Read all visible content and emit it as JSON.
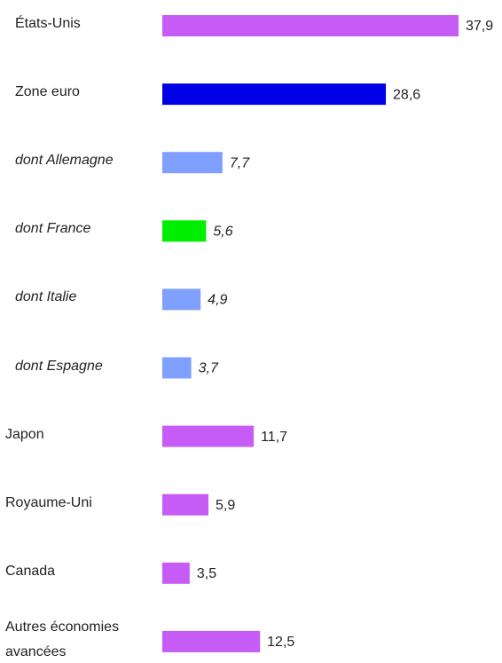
{
  "chart_data": {
    "type": "bar",
    "categories": [
      "États-Unis",
      "Zone euro",
      "dont Allemagne",
      "dont France",
      "dont Italie",
      "dont Espagne",
      "Japon",
      "Royaume-Uni",
      "Canada",
      "Autres économies avancées"
    ],
    "values": [
      37.9,
      28.6,
      7.7,
      5.6,
      4.9,
      3.7,
      11.7,
      5.9,
      3.5,
      12.5
    ],
    "value_labels": [
      "37,9",
      "28,6",
      "7,7",
      "5,6",
      "4,9",
      "3,7",
      "11,7",
      "5,9",
      "3,5",
      "12,5"
    ],
    "colors": [
      "#c65cf5",
      "#0000e6",
      "#80a0ff",
      "#00ee00",
      "#80a0ff",
      "#80a0ff",
      "#c65cf5",
      "#c65cf5",
      "#c65cf5",
      "#c65cf5"
    ]
  }
}
